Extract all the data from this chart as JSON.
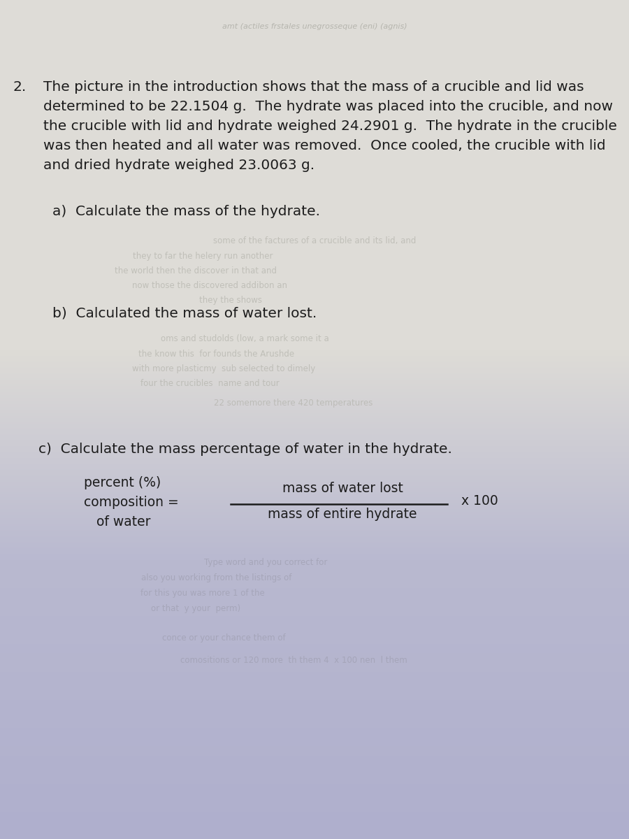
{
  "title_number": "2.",
  "main_text_lines": [
    "The picture in the introduction shows that the mass of a crucible and lid was",
    "determined to be 22.1504 g.  The hydrate was placed into the crucible, and now",
    "the crucible with lid and hydrate weighed 24.2901 g.  The hydrate in the crucible",
    "was then heated and all water was removed.  Once cooled, the crucible with lid",
    "and dried hydrate weighed 23.0063 g."
  ],
  "part_a_label": "a)  Calculate the mass of the hydrate.",
  "part_b_label": "b)  Calculated the mass of water lost.",
  "part_c_label": "c)  Calculate the mass percentage of water in the hydrate.",
  "formula_left_line1": "percent (%)",
  "formula_left_line2": "composition =",
  "formula_left_line3": "of water",
  "formula_numerator": "mass of water lost",
  "formula_denominator": "mass of entire hydrate",
  "formula_x100": "x 100",
  "text_color": "#1c1c1c",
  "font_size_main": 14.5,
  "font_size_formula": 13.5,
  "wm_fontsize": 8.5
}
